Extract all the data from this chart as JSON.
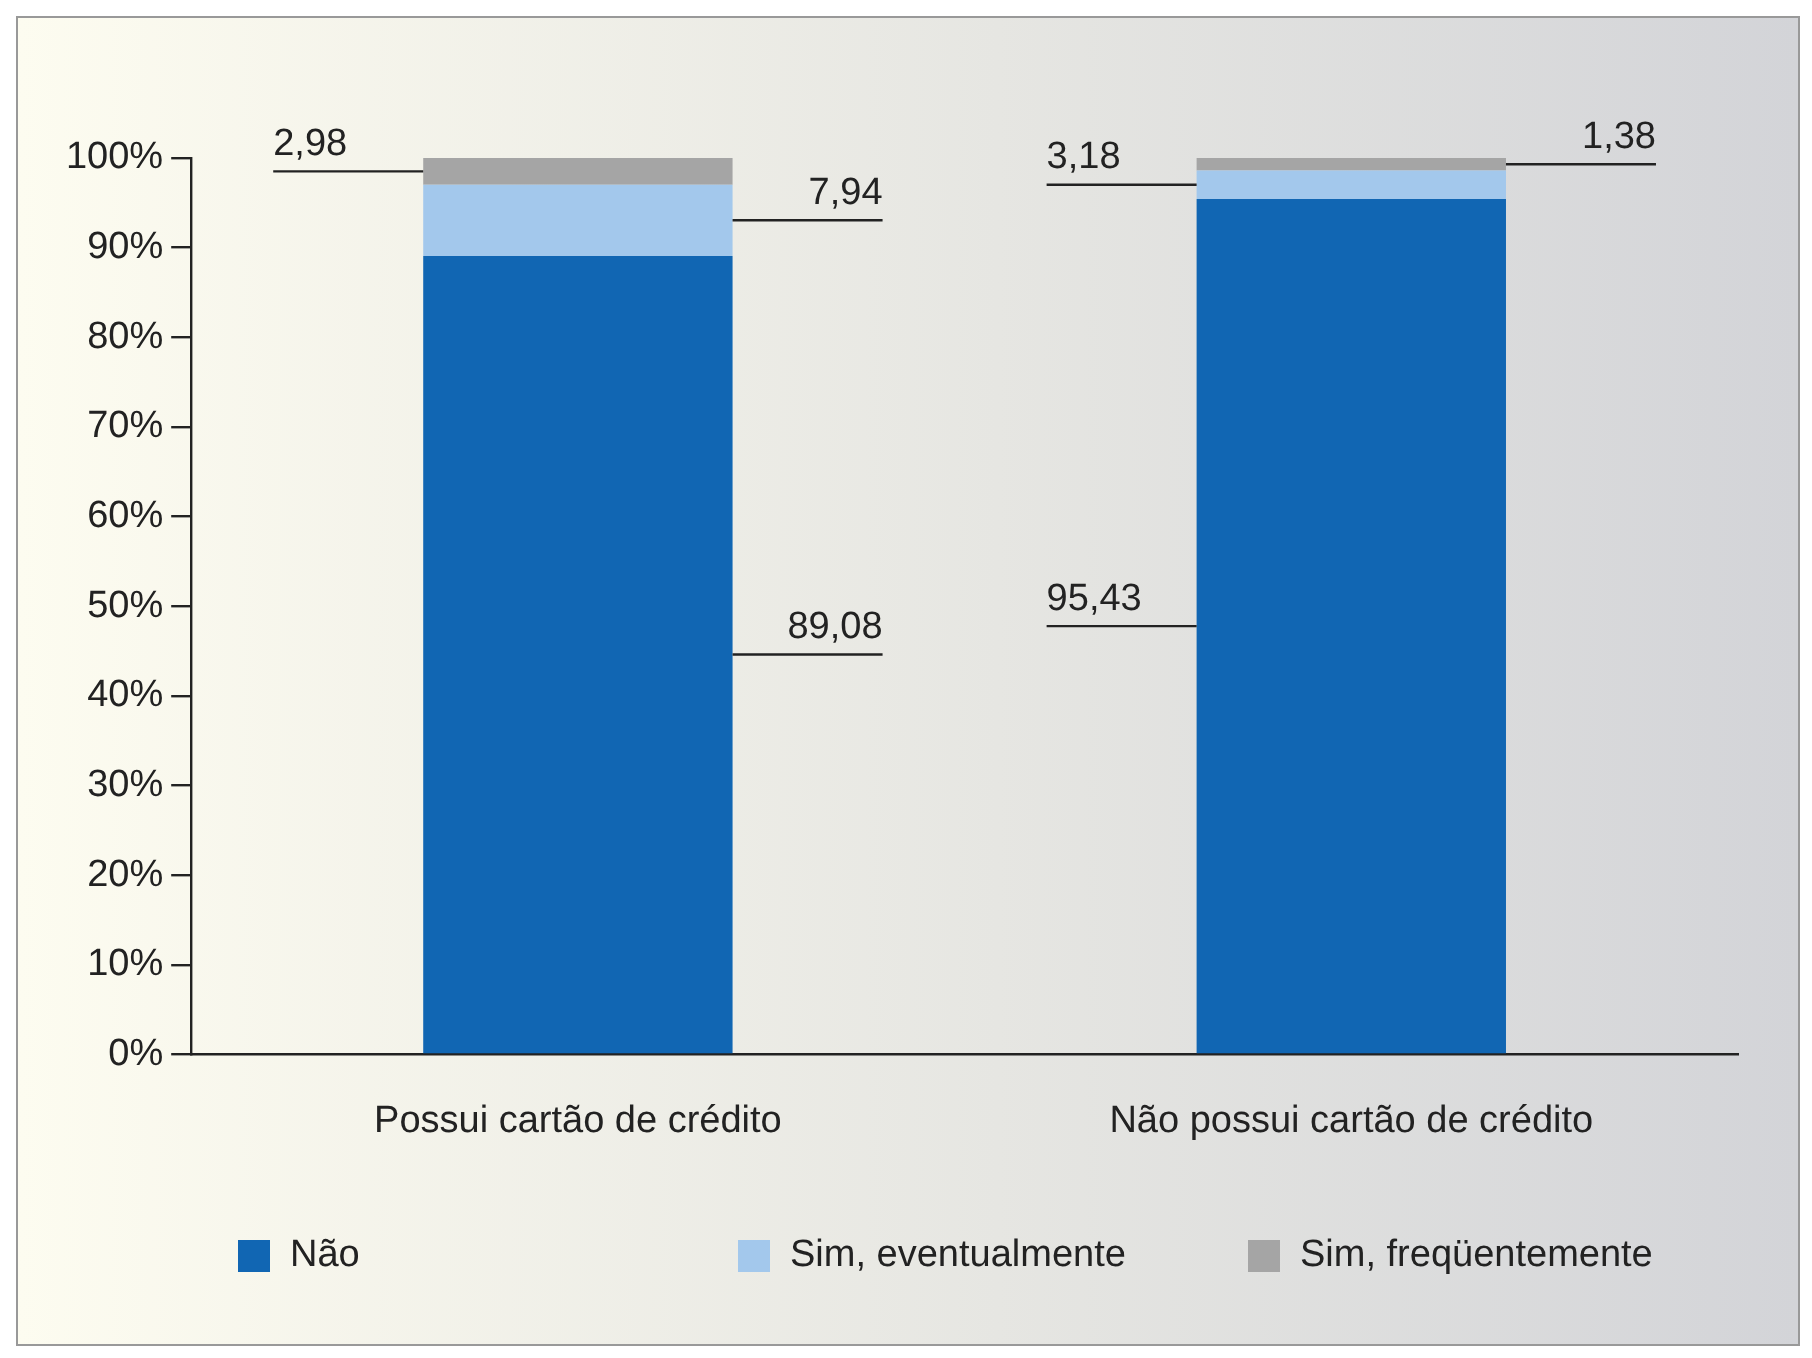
{
  "chart_data": {
    "type": "bar",
    "stacked": true,
    "categories": [
      "Possui cartão de crédito",
      "Não possui cartão de crédito"
    ],
    "series": [
      {
        "name": "Não",
        "color": "#1166b3",
        "values": [
          89.08,
          95.43
        ],
        "value_labels": [
          "89,08",
          "95,43"
        ]
      },
      {
        "name": "Sim, eventualmente",
        "color": "#a3c8ec",
        "values": [
          7.94,
          3.18
        ],
        "value_labels": [
          "7,94",
          "3,18"
        ]
      },
      {
        "name": "Sim, freqüentemente",
        "color": "#a5a5a5",
        "values": [
          2.98,
          1.38
        ],
        "value_labels": [
          "2,98",
          "1,38"
        ]
      }
    ],
    "ylim": [
      0,
      100
    ],
    "yticks": [
      {
        "value": 0,
        "label": "0%"
      },
      {
        "value": 10,
        "label": "10%"
      },
      {
        "value": 20,
        "label": "20%"
      },
      {
        "value": 30,
        "label": "30%"
      },
      {
        "value": 40,
        "label": "40%"
      },
      {
        "value": 50,
        "label": "50%"
      },
      {
        "value": 60,
        "label": "60%"
      },
      {
        "value": 70,
        "label": "70%"
      },
      {
        "value": 80,
        "label": "80%"
      },
      {
        "value": 90,
        "label": "90%"
      },
      {
        "value": 100,
        "label": "100%"
      }
    ],
    "grid": false,
    "legend": "bottom"
  }
}
